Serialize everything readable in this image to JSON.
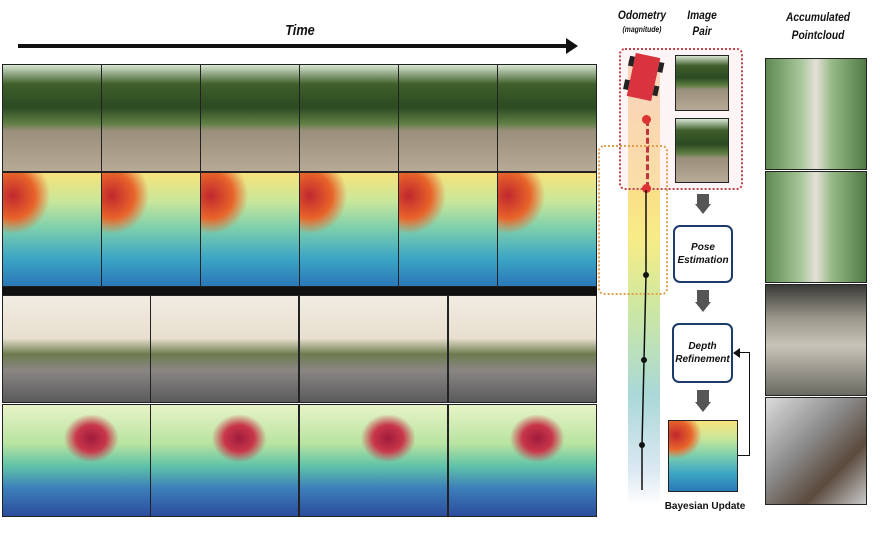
{
  "time_label": "Time",
  "odometry": {
    "title": "Odometry",
    "subtitle": "(magnitude)"
  },
  "image_pair": {
    "title_line1": "Image",
    "title_line2": "Pair"
  },
  "pointcloud": {
    "title_line1": "Accumulated",
    "title_line2": "Pointcloud"
  },
  "pipeline": {
    "pose_line1": "Pose",
    "pose_line2": "Estimation",
    "depth_line1": "Depth",
    "depth_line2": "Refinement",
    "bayesian": "Bayesian Update"
  },
  "colors": {
    "car": "#d9343d",
    "dashed_box": "#c0474f",
    "orange_box": "#e0a050",
    "box_border": "#1d3b6a",
    "arrow": "#555555"
  }
}
